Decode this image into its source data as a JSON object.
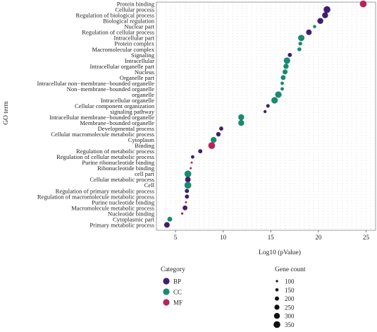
{
  "chart_data": {
    "type": "scatter",
    "xlabel": "Log10 (pValue)",
    "ylabel": "GO term",
    "xlim": [
      3,
      26
    ],
    "xticks": [
      5,
      10,
      15,
      20,
      25
    ],
    "grid": "dotted",
    "legend_position": "bottom",
    "categories": [
      {
        "name": "BP",
        "color": "#3f1f6e"
      },
      {
        "name": "CC",
        "color": "#1a8a6f"
      },
      {
        "name": "MF",
        "color": "#b8245c"
      }
    ],
    "size_legend": {
      "title": "Gene count",
      "values": [
        100,
        150,
        200,
        250,
        300,
        350
      ]
    },
    "legend_title": "Category",
    "terms": [
      {
        "term": "Protein binding",
        "x": 24.7,
        "category": "MF",
        "count": 350
      },
      {
        "term": "Cellular process",
        "x": 20.9,
        "category": "BP",
        "count": 350
      },
      {
        "term": "Regulation of biological process",
        "x": 20.7,
        "category": "BP",
        "count": 300
      },
      {
        "term": "Biological regulation",
        "x": 20.2,
        "category": "BP",
        "count": 300
      },
      {
        "term": "Nuclear part",
        "x": 19.6,
        "category": "CC",
        "count": 150
      },
      {
        "term": "Regulation of cellular process",
        "x": 19.0,
        "category": "BP",
        "count": 280
      },
      {
        "term": "Intracellular part",
        "x": 18.2,
        "category": "CC",
        "count": 320
      },
      {
        "term": "Protein complex",
        "x": 18.1,
        "category": "CC",
        "count": 180
      },
      {
        "term": "Macromolecular complex",
        "x": 18.0,
        "category": "CC",
        "count": 190
      },
      {
        "term": "Signaling",
        "x": 17.0,
        "category": "BP",
        "count": 200
      },
      {
        "term": "Intracellular",
        "x": 16.7,
        "category": "CC",
        "count": 330
      },
      {
        "term": "Intracellular organelle part",
        "x": 16.6,
        "category": "CC",
        "count": 260
      },
      {
        "term": "Nucleus",
        "x": 16.5,
        "category": "CC",
        "count": 250
      },
      {
        "term": "Organelle part",
        "x": 16.3,
        "category": "CC",
        "count": 240
      },
      {
        "term": "Intracellular non−membrane−bounded organelle",
        "x": 16.2,
        "category": "CC",
        "count": 160
      },
      {
        "term": "Non−membrane−bounded organelle",
        "x": 16.2,
        "category": "CC",
        "count": 160
      },
      {
        "term": "organelle",
        "x": 15.8,
        "category": "CC",
        "count": 330
      },
      {
        "term": "Intracellular organelle",
        "x": 15.4,
        "category": "CC",
        "count": 330
      },
      {
        "term": "Cellular component organization",
        "x": 14.7,
        "category": "BP",
        "count": 170
      },
      {
        "term": "signaling pathway",
        "x": 14.4,
        "category": "BP",
        "count": 140
      },
      {
        "term": "Intracellular membrane−bounded organelle",
        "x": 11.9,
        "category": "CC",
        "count": 300
      },
      {
        "term": "Membrane−bounded organelle",
        "x": 11.9,
        "category": "CC",
        "count": 300
      },
      {
        "term": "Developmental process",
        "x": 9.8,
        "category": "BP",
        "count": 200
      },
      {
        "term": "Cellular macromolecule metabolic process",
        "x": 9.5,
        "category": "BP",
        "count": 220
      },
      {
        "term": "Cytoplasm",
        "x": 9.0,
        "category": "CC",
        "count": 300
      },
      {
        "term": "Binding",
        "x": 8.8,
        "category": "MF",
        "count": 350
      },
      {
        "term": "Regulation of metabolic process",
        "x": 7.6,
        "category": "BP",
        "count": 200
      },
      {
        "term": "Regulation of cellular metabolic process",
        "x": 6.8,
        "category": "BP",
        "count": 160
      },
      {
        "term": "Purine ribonucleotide binding",
        "x": 6.7,
        "category": "MF",
        "count": 90
      },
      {
        "term": "Ribonucleotide binding",
        "x": 6.6,
        "category": "MF",
        "count": 90
      },
      {
        "term": "cell part",
        "x": 6.3,
        "category": "CC",
        "count": 350
      },
      {
        "term": "Cellular metabolic process",
        "x": 6.3,
        "category": "BP",
        "count": 280
      },
      {
        "term": "Cell",
        "x": 6.3,
        "category": "CC",
        "count": 350
      },
      {
        "term": "Regulation of primary metabolic process",
        "x": 6.2,
        "category": "BP",
        "count": 200
      },
      {
        "term": "Regulation of macromolecule metabolic process",
        "x": 6.2,
        "category": "BP",
        "count": 200
      },
      {
        "term": "Purine nucleotide binding",
        "x": 6.1,
        "category": "MF",
        "count": 90
      },
      {
        "term": "Macromolecule metabolic process",
        "x": 6.0,
        "category": "BP",
        "count": 240
      },
      {
        "term": "Nucleotide binding",
        "x": 5.7,
        "category": "MF",
        "count": 100
      },
      {
        "term": "Cytoplasmic part",
        "x": 4.4,
        "category": "CC",
        "count": 240
      },
      {
        "term": "Primary metabolic process",
        "x": 4.1,
        "category": "BP",
        "count": 280
      }
    ]
  }
}
